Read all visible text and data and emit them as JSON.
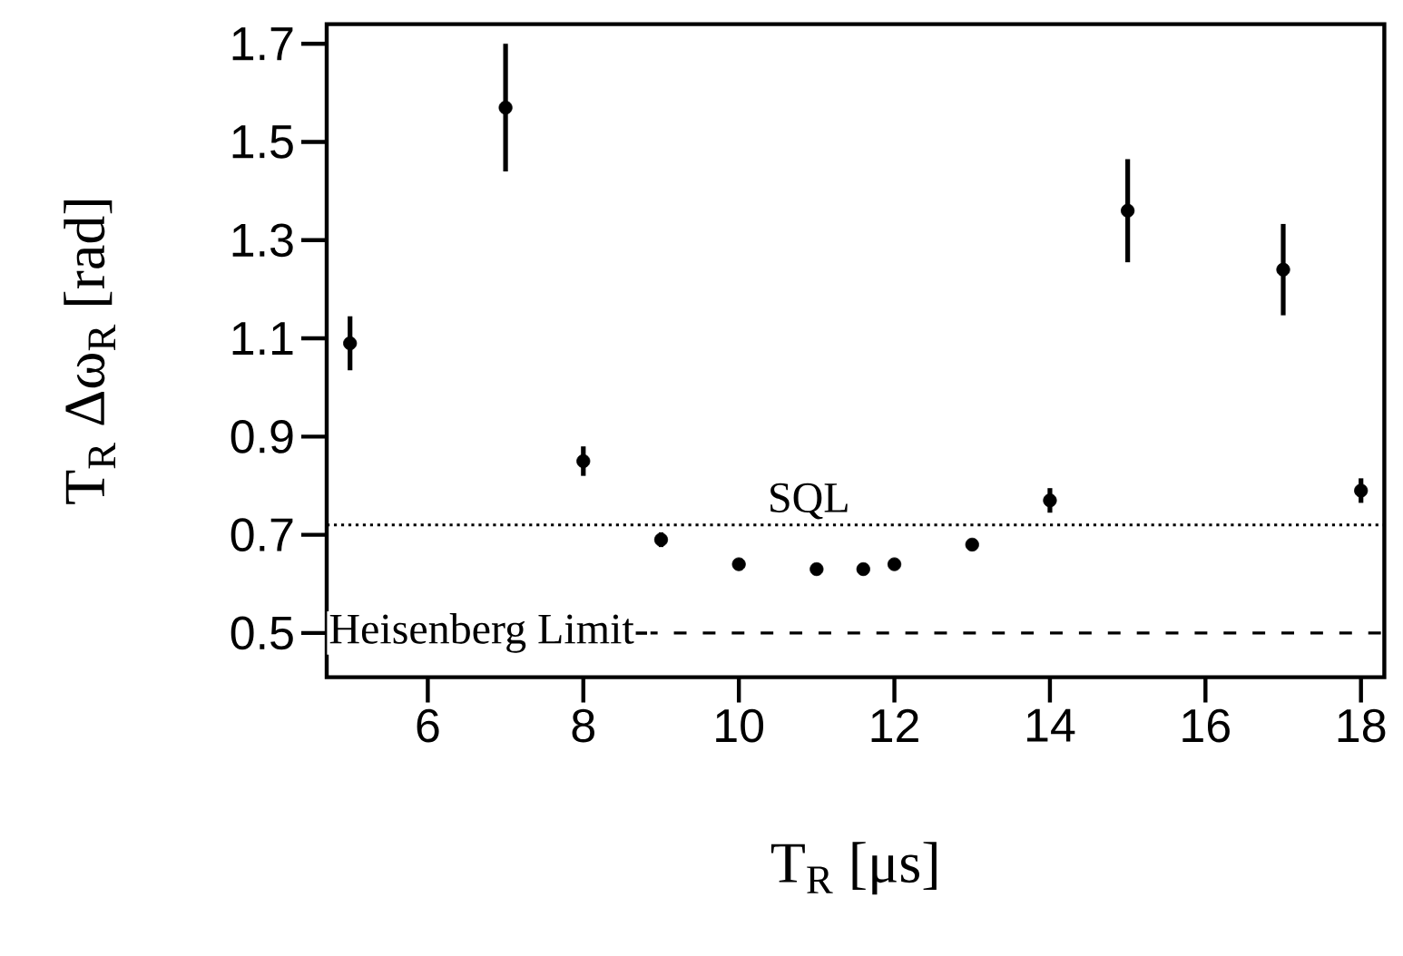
{
  "chart_data": {
    "type": "scatter",
    "xlabel": "T$_{R}$  [μs]",
    "ylabel": "T$_{R}$ Δω$_{R}$ [rad]",
    "x": [
      5,
      7,
      8,
      9,
      10,
      11,
      11.6,
      12,
      13,
      14,
      15,
      17,
      18
    ],
    "values": [
      1.09,
      1.57,
      0.85,
      0.69,
      0.64,
      0.63,
      0.63,
      0.64,
      0.68,
      0.77,
      1.36,
      1.24,
      0.79
    ],
    "errors": [
      0.055,
      0.13,
      0.03,
      0.015,
      null,
      null,
      null,
      null,
      null,
      0.025,
      0.105,
      0.093,
      0.025
    ],
    "color": "#000000",
    "marker": "circle",
    "xlim": [
      4.7,
      18.3
    ],
    "ylim": [
      0.41,
      1.74
    ],
    "xticks": [
      6,
      8,
      10,
      12,
      14,
      16,
      18
    ],
    "yticks": [
      0.5,
      0.7,
      0.9,
      1.1,
      1.3,
      1.5,
      1.7
    ],
    "ref_lines": [
      {
        "axis": "y",
        "value": 0.72,
        "label": "SQL",
        "line_style": "dotted"
      },
      {
        "axis": "y",
        "value": 0.5,
        "label": "Heisenberg Limit-",
        "line_style": "dashed"
      }
    ],
    "grid": false
  }
}
